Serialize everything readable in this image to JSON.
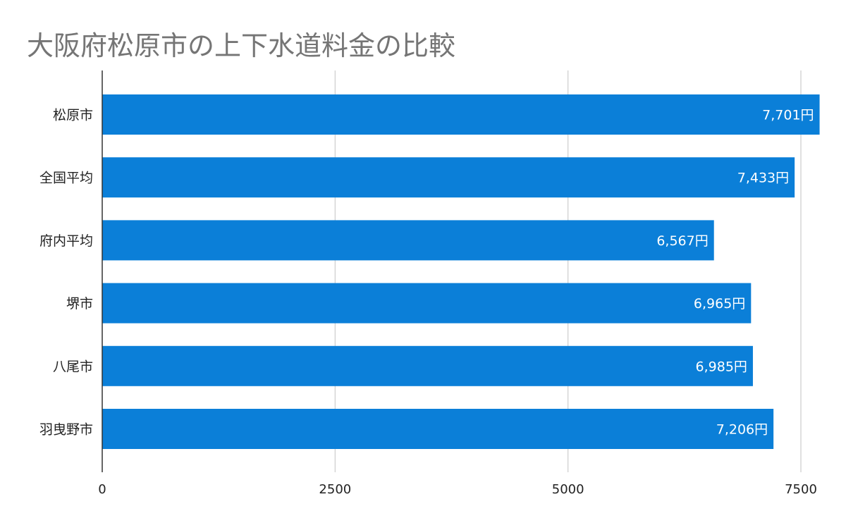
{
  "chart_data": {
    "type": "bar",
    "orientation": "horizontal",
    "title": "大阪府松原市の上下水道料金の比較",
    "categories": [
      "松原市",
      "全国平均",
      "府内平均",
      "堺市",
      "八尾市",
      "羽曳野市"
    ],
    "values": [
      7701,
      7433,
      6567,
      6965,
      6985,
      7206
    ],
    "data_labels": [
      "7,701円",
      "7,433円",
      "6,567円",
      "6,965円",
      "6,985円",
      "7,206円"
    ],
    "xlim": [
      0,
      7700
    ],
    "x_ticks": [
      0,
      2500,
      5000,
      7500
    ],
    "x_tick_labels": [
      "0",
      "2500",
      "5000",
      "7500"
    ],
    "grid": "vertical",
    "legend": "none",
    "colors": {
      "bar": "#0b7fd8",
      "grid": "#cccccc",
      "axis": "#333333",
      "title": "#757575"
    }
  }
}
